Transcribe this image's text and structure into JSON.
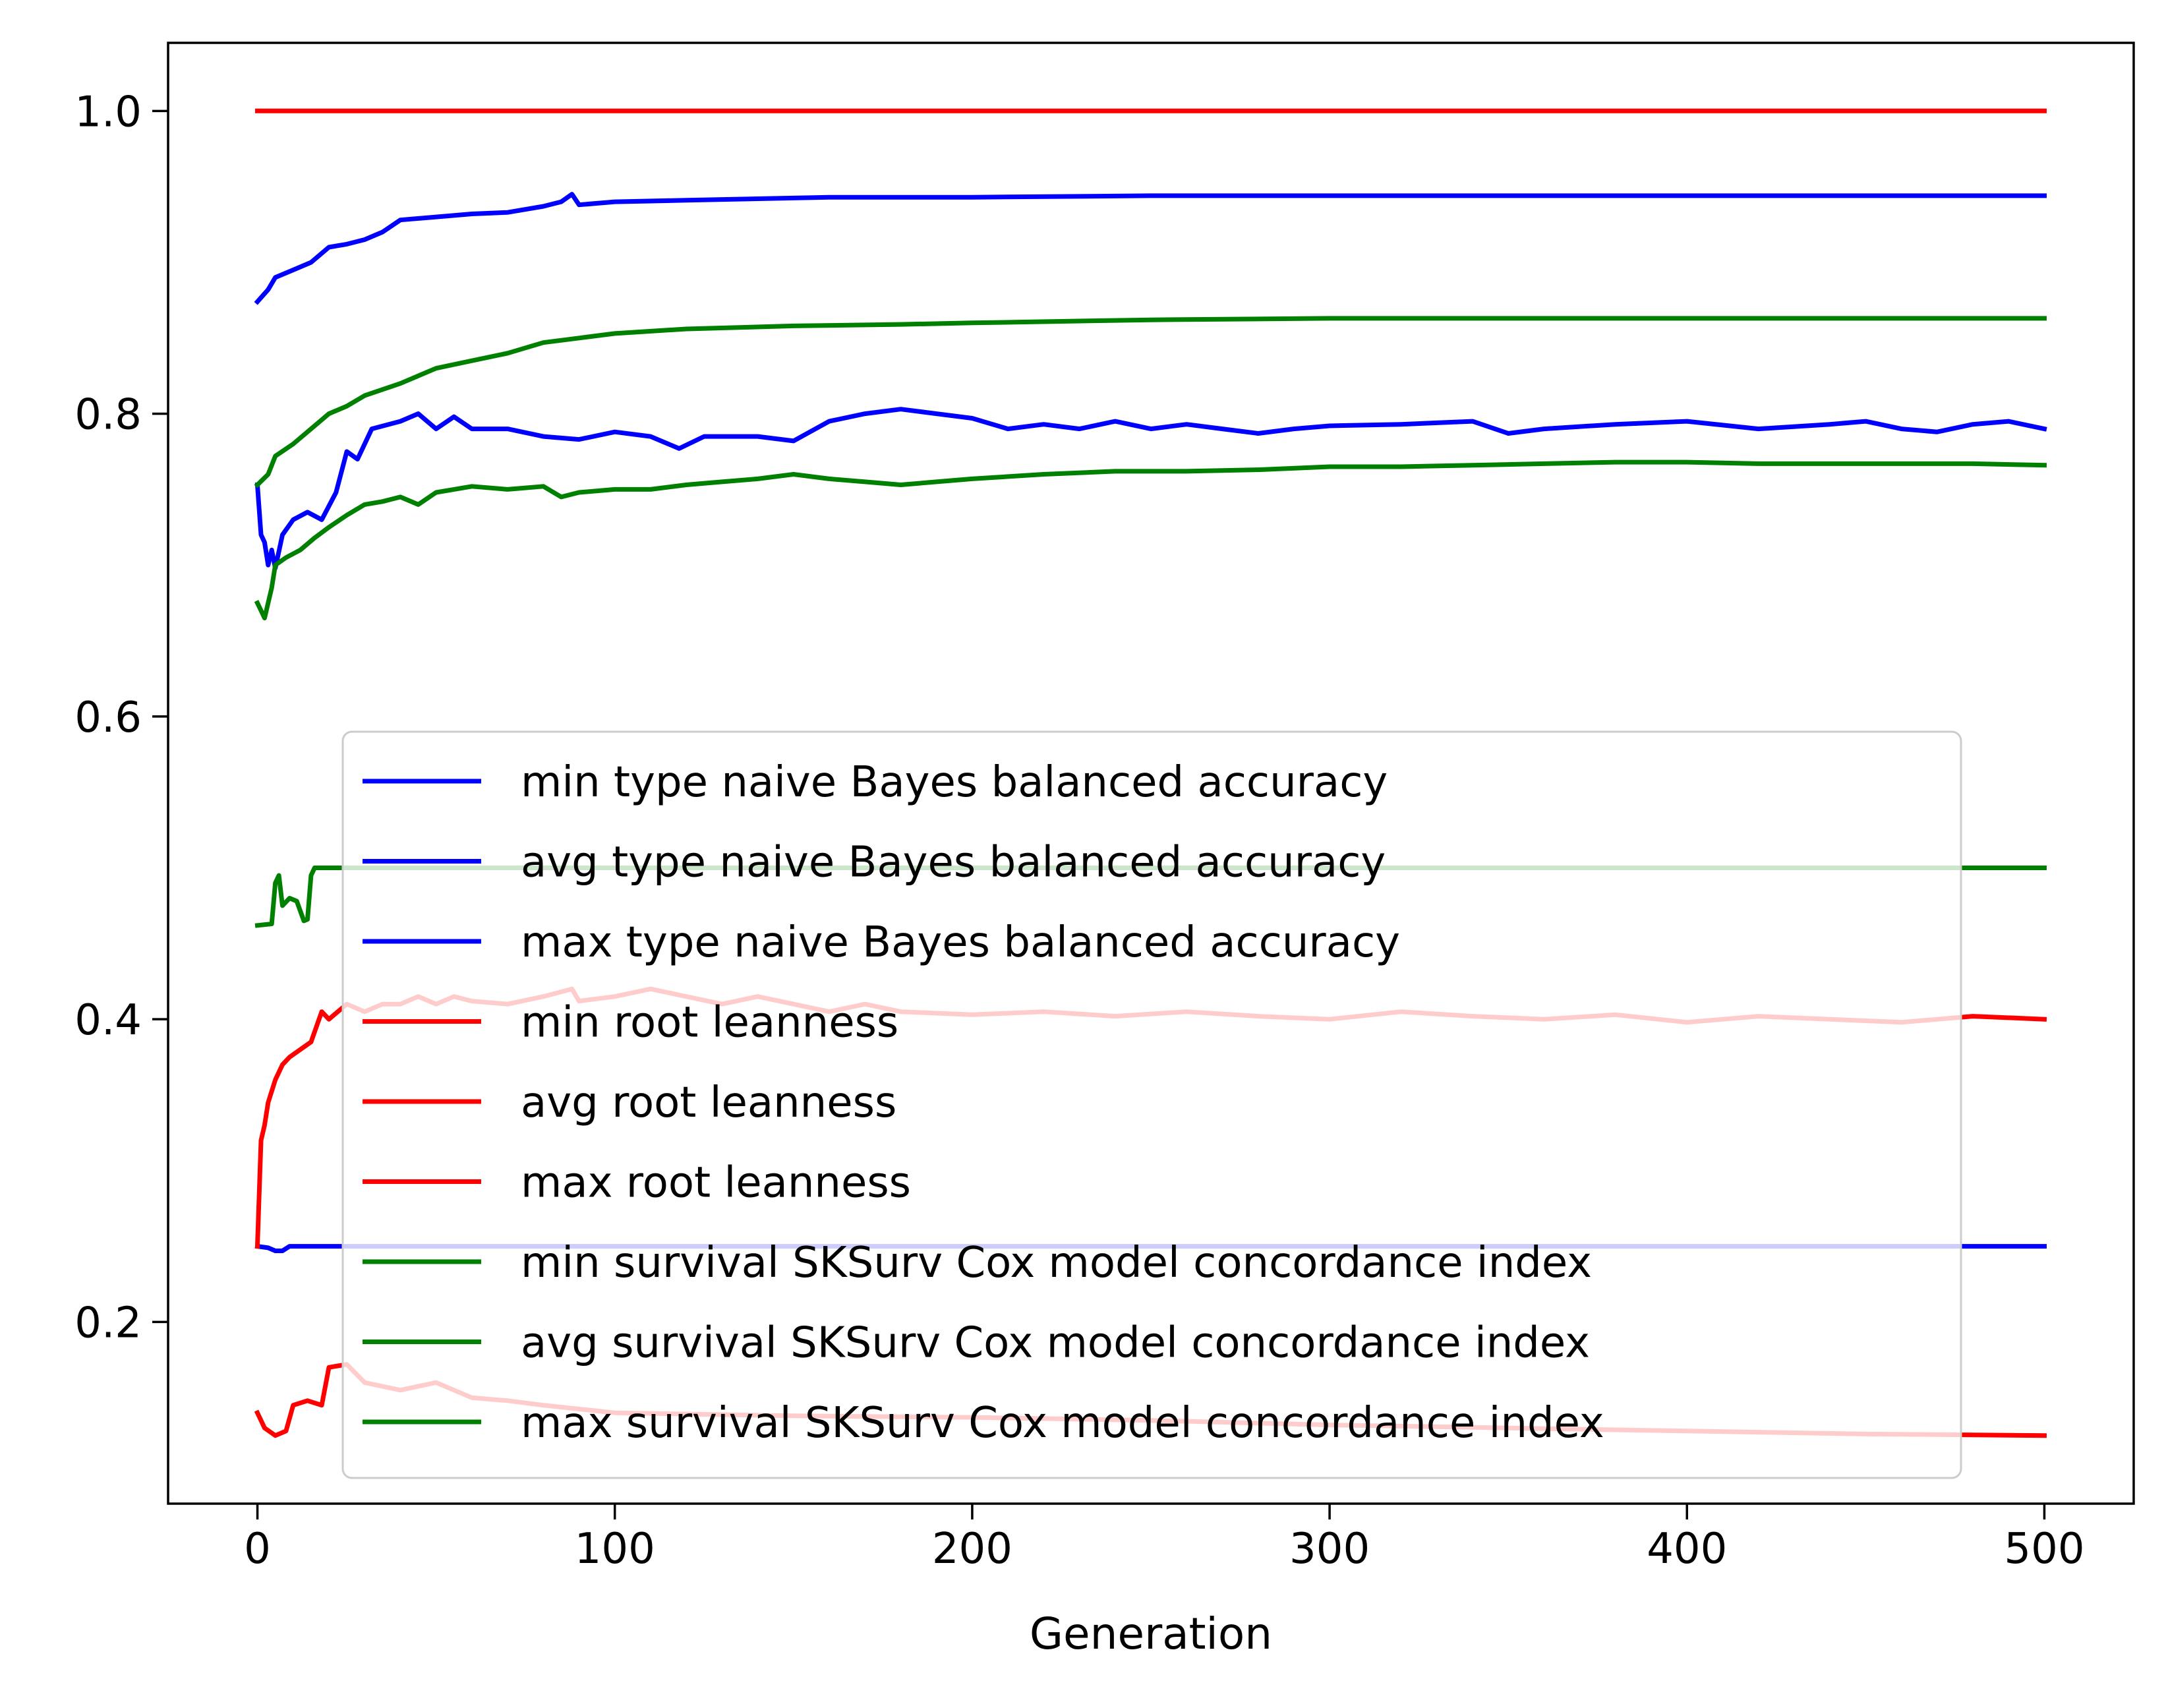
{
  "chart_data": {
    "type": "line",
    "xlabel": "Generation",
    "ylabel": "",
    "title": "",
    "xlim": [
      -25,
      525
    ],
    "ylim": [
      0.08,
      1.045
    ],
    "xticks": [
      0,
      100,
      200,
      300,
      400,
      500
    ],
    "yticks": [
      0.2,
      0.4,
      0.6,
      0.8,
      1.0
    ],
    "xtick_labels": [
      "0",
      "100",
      "200",
      "300",
      "400",
      "500"
    ],
    "ytick_labels": [
      "0.2",
      "0.4",
      "0.6",
      "0.8",
      "1.0"
    ],
    "grid": false,
    "legend_position": "lower-center",
    "series": [
      {
        "name": "min type naive Bayes balanced accuracy",
        "color": "#0000ff",
        "points": [
          [
            0,
            0.25
          ],
          [
            3,
            0.249
          ],
          [
            5,
            0.247
          ],
          [
            7,
            0.247
          ],
          [
            9,
            0.25
          ],
          [
            20,
            0.25
          ],
          [
            100,
            0.25
          ],
          [
            200,
            0.25
          ],
          [
            300,
            0.25
          ],
          [
            400,
            0.25
          ],
          [
            500,
            0.25
          ]
        ]
      },
      {
        "name": "avg type naive Bayes balanced accuracy",
        "color": "#0000ff",
        "points": [
          [
            0,
            0.753
          ],
          [
            1,
            0.72
          ],
          [
            2,
            0.715
          ],
          [
            3,
            0.7
          ],
          [
            4,
            0.71
          ],
          [
            5,
            0.698
          ],
          [
            7,
            0.72
          ],
          [
            10,
            0.73
          ],
          [
            14,
            0.735
          ],
          [
            18,
            0.73
          ],
          [
            22,
            0.748
          ],
          [
            25,
            0.775
          ],
          [
            28,
            0.77
          ],
          [
            32,
            0.79
          ],
          [
            40,
            0.795
          ],
          [
            45,
            0.8
          ],
          [
            50,
            0.79
          ],
          [
            55,
            0.798
          ],
          [
            60,
            0.79
          ],
          [
            70,
            0.79
          ],
          [
            80,
            0.785
          ],
          [
            90,
            0.783
          ],
          [
            100,
            0.788
          ],
          [
            110,
            0.785
          ],
          [
            118,
            0.777
          ],
          [
            125,
            0.785
          ],
          [
            140,
            0.785
          ],
          [
            150,
            0.782
          ],
          [
            160,
            0.795
          ],
          [
            170,
            0.8
          ],
          [
            180,
            0.803
          ],
          [
            190,
            0.8
          ],
          [
            200,
            0.797
          ],
          [
            210,
            0.79
          ],
          [
            220,
            0.793
          ],
          [
            230,
            0.79
          ],
          [
            240,
            0.795
          ],
          [
            250,
            0.79
          ],
          [
            260,
            0.793
          ],
          [
            270,
            0.79
          ],
          [
            280,
            0.787
          ],
          [
            290,
            0.79
          ],
          [
            300,
            0.792
          ],
          [
            320,
            0.793
          ],
          [
            340,
            0.795
          ],
          [
            350,
            0.787
          ],
          [
            360,
            0.79
          ],
          [
            380,
            0.793
          ],
          [
            400,
            0.795
          ],
          [
            420,
            0.79
          ],
          [
            440,
            0.793
          ],
          [
            450,
            0.795
          ],
          [
            460,
            0.79
          ],
          [
            470,
            0.788
          ],
          [
            480,
            0.793
          ],
          [
            490,
            0.795
          ],
          [
            500,
            0.79
          ]
        ]
      },
      {
        "name": "max type naive Bayes balanced accuracy",
        "color": "#0000ff",
        "points": [
          [
            0,
            0.874
          ],
          [
            3,
            0.882
          ],
          [
            5,
            0.89
          ],
          [
            10,
            0.895
          ],
          [
            15,
            0.9
          ],
          [
            20,
            0.91
          ],
          [
            25,
            0.912
          ],
          [
            30,
            0.915
          ],
          [
            35,
            0.92
          ],
          [
            40,
            0.928
          ],
          [
            50,
            0.93
          ],
          [
            60,
            0.932
          ],
          [
            70,
            0.933
          ],
          [
            80,
            0.937
          ],
          [
            85,
            0.94
          ],
          [
            88,
            0.945
          ],
          [
            90,
            0.938
          ],
          [
            100,
            0.94
          ],
          [
            120,
            0.941
          ],
          [
            140,
            0.942
          ],
          [
            160,
            0.943
          ],
          [
            200,
            0.943
          ],
          [
            250,
            0.944
          ],
          [
            300,
            0.944
          ],
          [
            400,
            0.944
          ],
          [
            500,
            0.944
          ]
        ]
      },
      {
        "name": "min root leanness",
        "color": "#ff0000",
        "points": [
          [
            0,
            0.14
          ],
          [
            2,
            0.13
          ],
          [
            5,
            0.125
          ],
          [
            8,
            0.128
          ],
          [
            10,
            0.145
          ],
          [
            14,
            0.148
          ],
          [
            18,
            0.145
          ],
          [
            20,
            0.17
          ],
          [
            25,
            0.172
          ],
          [
            30,
            0.16
          ],
          [
            40,
            0.155
          ],
          [
            50,
            0.16
          ],
          [
            60,
            0.15
          ],
          [
            70,
            0.148
          ],
          [
            80,
            0.145
          ],
          [
            100,
            0.14
          ],
          [
            150,
            0.138
          ],
          [
            200,
            0.137
          ],
          [
            250,
            0.135
          ],
          [
            300,
            0.132
          ],
          [
            350,
            0.13
          ],
          [
            400,
            0.128
          ],
          [
            450,
            0.126
          ],
          [
            500,
            0.125
          ]
        ]
      },
      {
        "name": "avg root leanness",
        "color": "#ff0000",
        "points": [
          [
            0,
            0.25
          ],
          [
            1,
            0.32
          ],
          [
            2,
            0.33
          ],
          [
            3,
            0.345
          ],
          [
            5,
            0.36
          ],
          [
            7,
            0.37
          ],
          [
            9,
            0.375
          ],
          [
            12,
            0.38
          ],
          [
            15,
            0.385
          ],
          [
            18,
            0.405
          ],
          [
            20,
            0.4
          ],
          [
            25,
            0.41
          ],
          [
            30,
            0.405
          ],
          [
            35,
            0.41
          ],
          [
            40,
            0.41
          ],
          [
            45,
            0.415
          ],
          [
            50,
            0.41
          ],
          [
            55,
            0.415
          ],
          [
            60,
            0.412
          ],
          [
            70,
            0.41
          ],
          [
            80,
            0.415
          ],
          [
            88,
            0.42
          ],
          [
            90,
            0.412
          ],
          [
            100,
            0.415
          ],
          [
            110,
            0.42
          ],
          [
            120,
            0.415
          ],
          [
            130,
            0.41
          ],
          [
            140,
            0.415
          ],
          [
            150,
            0.41
          ],
          [
            160,
            0.405
          ],
          [
            170,
            0.41
          ],
          [
            180,
            0.405
          ],
          [
            200,
            0.403
          ],
          [
            220,
            0.405
          ],
          [
            240,
            0.402
          ],
          [
            260,
            0.405
          ],
          [
            280,
            0.402
          ],
          [
            300,
            0.4
          ],
          [
            320,
            0.405
          ],
          [
            340,
            0.402
          ],
          [
            360,
            0.4
          ],
          [
            380,
            0.403
          ],
          [
            400,
            0.398
          ],
          [
            420,
            0.402
          ],
          [
            440,
            0.4
          ],
          [
            460,
            0.398
          ],
          [
            480,
            0.402
          ],
          [
            500,
            0.4
          ]
        ]
      },
      {
        "name": "max root leanness",
        "color": "#ff0000",
        "points": [
          [
            0,
            1.0
          ],
          [
            100,
            1.0
          ],
          [
            200,
            1.0
          ],
          [
            300,
            1.0
          ],
          [
            400,
            1.0
          ],
          [
            500,
            1.0
          ]
        ]
      },
      {
        "name": "min survival SKSurv Cox model concordance index",
        "color": "#008000",
        "points": [
          [
            0,
            0.462
          ],
          [
            4,
            0.463
          ],
          [
            5,
            0.49
          ],
          [
            6,
            0.495
          ],
          [
            7,
            0.475
          ],
          [
            9,
            0.48
          ],
          [
            11,
            0.478
          ],
          [
            13,
            0.465
          ],
          [
            14,
            0.466
          ],
          [
            15,
            0.495
          ],
          [
            16,
            0.5
          ],
          [
            30,
            0.5
          ],
          [
            100,
            0.5
          ],
          [
            200,
            0.5
          ],
          [
            300,
            0.5
          ],
          [
            400,
            0.5
          ],
          [
            500,
            0.5
          ]
        ]
      },
      {
        "name": "avg survival SKSurv Cox model concordance index",
        "color": "#008000",
        "points": [
          [
            0,
            0.675
          ],
          [
            1,
            0.67
          ],
          [
            2,
            0.665
          ],
          [
            4,
            0.685
          ],
          [
            5,
            0.7
          ],
          [
            8,
            0.705
          ],
          [
            12,
            0.71
          ],
          [
            16,
            0.718
          ],
          [
            20,
            0.725
          ],
          [
            25,
            0.733
          ],
          [
            30,
            0.74
          ],
          [
            35,
            0.742
          ],
          [
            40,
            0.745
          ],
          [
            45,
            0.74
          ],
          [
            50,
            0.748
          ],
          [
            55,
            0.75
          ],
          [
            60,
            0.752
          ],
          [
            70,
            0.75
          ],
          [
            80,
            0.752
          ],
          [
            85,
            0.745
          ],
          [
            90,
            0.748
          ],
          [
            100,
            0.75
          ],
          [
            110,
            0.75
          ],
          [
            120,
            0.753
          ],
          [
            130,
            0.755
          ],
          [
            140,
            0.757
          ],
          [
            150,
            0.76
          ],
          [
            160,
            0.757
          ],
          [
            170,
            0.755
          ],
          [
            180,
            0.753
          ],
          [
            190,
            0.755
          ],
          [
            200,
            0.757
          ],
          [
            220,
            0.76
          ],
          [
            240,
            0.762
          ],
          [
            260,
            0.762
          ],
          [
            280,
            0.763
          ],
          [
            300,
            0.765
          ],
          [
            320,
            0.765
          ],
          [
            340,
            0.766
          ],
          [
            360,
            0.767
          ],
          [
            380,
            0.768
          ],
          [
            400,
            0.768
          ],
          [
            420,
            0.767
          ],
          [
            440,
            0.767
          ],
          [
            460,
            0.767
          ],
          [
            480,
            0.767
          ],
          [
            500,
            0.766
          ]
        ]
      },
      {
        "name": "max survival SKSurv Cox model concordance index",
        "color": "#008000",
        "points": [
          [
            0,
            0.753
          ],
          [
            3,
            0.76
          ],
          [
            5,
            0.772
          ],
          [
            10,
            0.78
          ],
          [
            15,
            0.79
          ],
          [
            20,
            0.8
          ],
          [
            25,
            0.805
          ],
          [
            30,
            0.812
          ],
          [
            40,
            0.82
          ],
          [
            50,
            0.83
          ],
          [
            60,
            0.835
          ],
          [
            70,
            0.84
          ],
          [
            80,
            0.847
          ],
          [
            90,
            0.85
          ],
          [
            100,
            0.853
          ],
          [
            120,
            0.856
          ],
          [
            150,
            0.858
          ],
          [
            180,
            0.859
          ],
          [
            200,
            0.86
          ],
          [
            250,
            0.862
          ],
          [
            300,
            0.863
          ],
          [
            400,
            0.863
          ],
          [
            500,
            0.863
          ]
        ]
      }
    ]
  }
}
